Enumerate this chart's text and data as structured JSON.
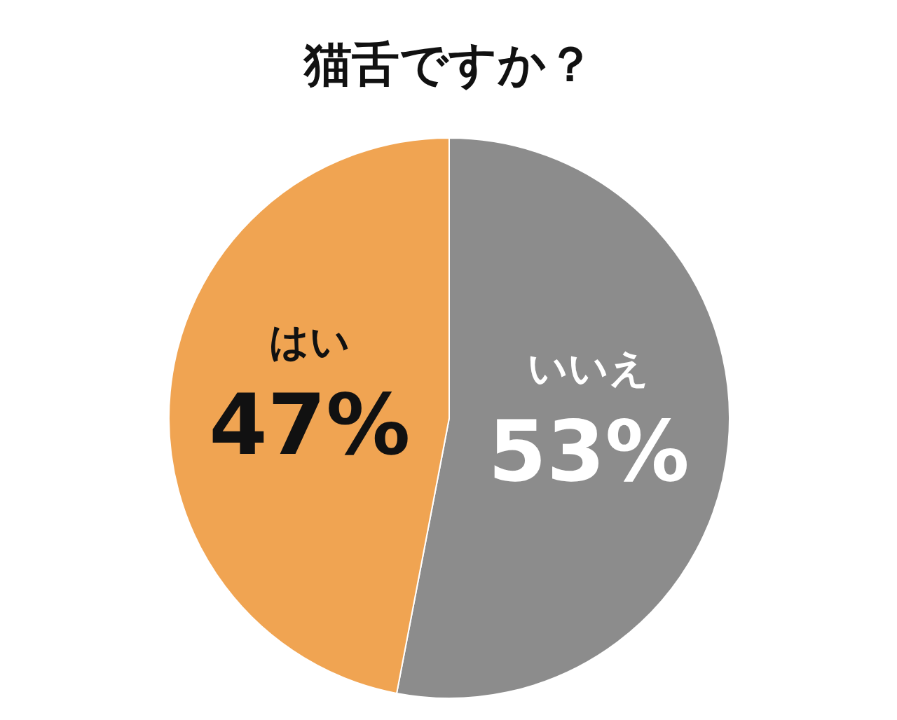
{
  "chart_data": {
    "type": "pie",
    "title": "猫舌ですか？",
    "categories": [
      "いいえ",
      "はい"
    ],
    "values": [
      53,
      47
    ],
    "colors": [
      "#8c8c8c",
      "#f0a452"
    ],
    "value_labels": [
      "53%",
      "47%"
    ]
  }
}
